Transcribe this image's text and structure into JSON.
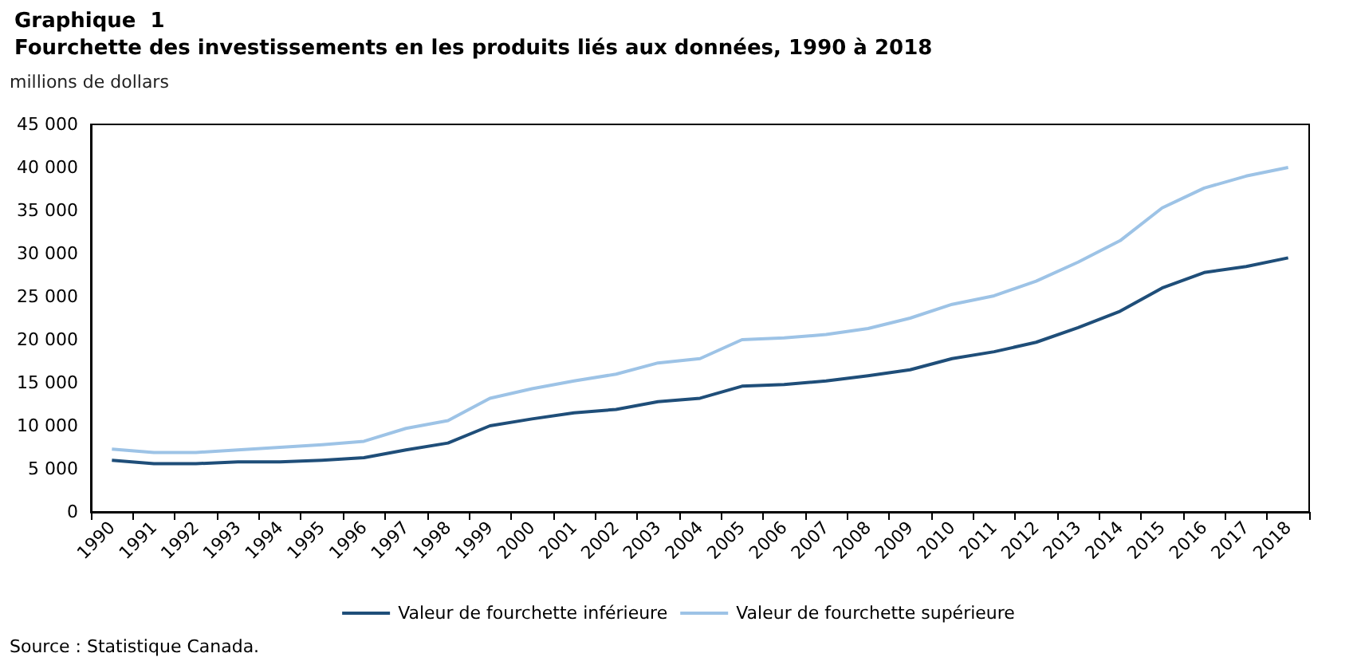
{
  "chart_data": {
    "type": "line",
    "title": "Graphique  1",
    "subtitle": "Fourchette des investissements en les produits liés aux données, 1990 à 2018",
    "ylabel": "millions de dollars",
    "categories": [
      "1990",
      "1991",
      "1992",
      "1993",
      "1994",
      "1995",
      "1996",
      "1997",
      "1998",
      "1999",
      "2000",
      "2001",
      "2002",
      "2003",
      "2004",
      "2005",
      "2006",
      "2007",
      "2008",
      "2009",
      "2010",
      "2011",
      "2012",
      "2013",
      "2014",
      "2015",
      "2016",
      "2017",
      "2018"
    ],
    "series": [
      {
        "name": "Valeur de fourchette inférieure",
        "color": "#1f4e79",
        "values": [
          6000,
          5600,
          5600,
          5800,
          5800,
          6000,
          6300,
          7200,
          8000,
          10000,
          10800,
          11500,
          11900,
          12800,
          13200,
          14600,
          14800,
          15200,
          15800,
          16500,
          17800,
          18600,
          19700,
          21400,
          23300,
          26000,
          27800,
          28500,
          29500
        ]
      },
      {
        "name": "Valeur de fourchette supérieure",
        "color": "#9dc3e6",
        "values": [
          7300,
          6900,
          6900,
          7200,
          7500,
          7800,
          8200,
          9700,
          10600,
          13200,
          14300,
          15200,
          16000,
          17300,
          17800,
          20000,
          20200,
          20600,
          21300,
          22500,
          24100,
          25100,
          26800,
          29000,
          31500,
          35300,
          37600,
          39000,
          40000
        ]
      }
    ],
    "ylim": [
      0,
      45000
    ],
    "yticks": [
      {
        "value": 0,
        "label": "0"
      },
      {
        "value": 5000,
        "label": "5 000"
      },
      {
        "value": 10000,
        "label": "10 000"
      },
      {
        "value": 15000,
        "label": "15 000"
      },
      {
        "value": 20000,
        "label": "20 000"
      },
      {
        "value": 25000,
        "label": "25 000"
      },
      {
        "value": 30000,
        "label": "30 000"
      },
      {
        "value": 35000,
        "label": "35 000"
      },
      {
        "value": 40000,
        "label": "40 000"
      },
      {
        "value": 45000,
        "label": "45 000"
      }
    ],
    "grid": false,
    "legend": "bottom",
    "marker": "none",
    "line_style": "solid",
    "annotations": [
      "Source : Statistique Canada."
    ]
  }
}
